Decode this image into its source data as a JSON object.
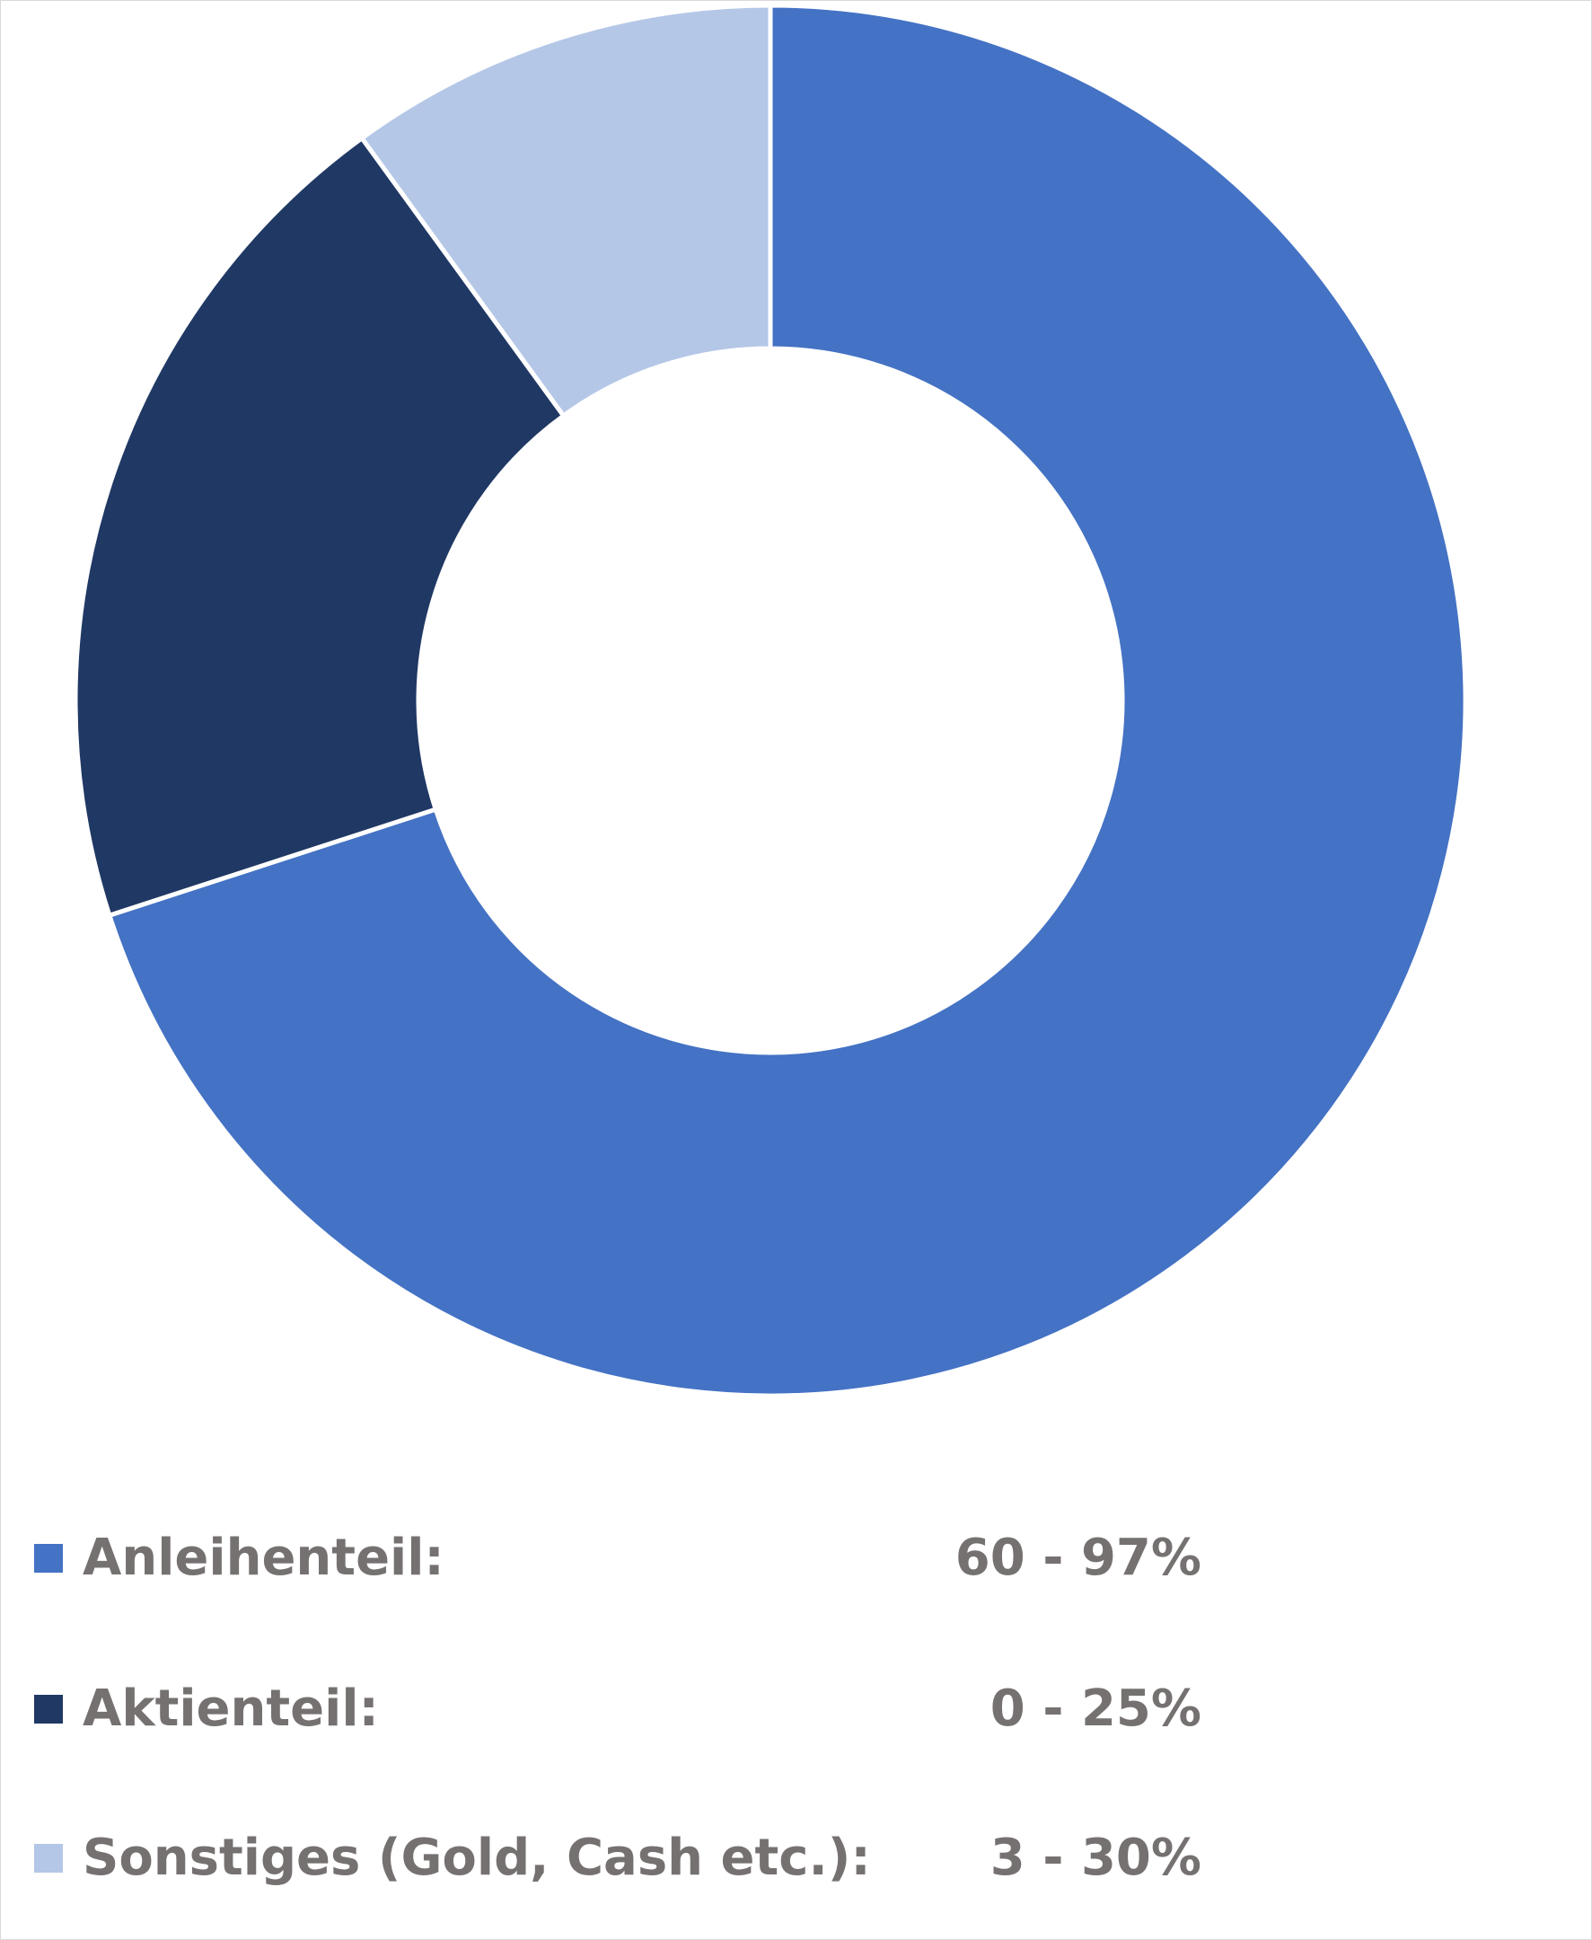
{
  "chart_data": {
    "type": "pie",
    "variant": "donut",
    "slices": [
      {
        "label": "Anleihenteil:",
        "range": "60 - 97%",
        "value": 70,
        "color": "#4472C4"
      },
      {
        "label": "Aktienteil:",
        "range": "0 - 25%",
        "value": 20,
        "color": "#203864"
      },
      {
        "label": "Sonstiges (Gold, Cash etc.):",
        "range": "3 - 30%",
        "value": 10,
        "color": "#B4C7E7"
      }
    ],
    "start_angle_deg": 0,
    "direction": "clockwise",
    "legend_position": "bottom",
    "slice_border_color": "#ffffff"
  }
}
